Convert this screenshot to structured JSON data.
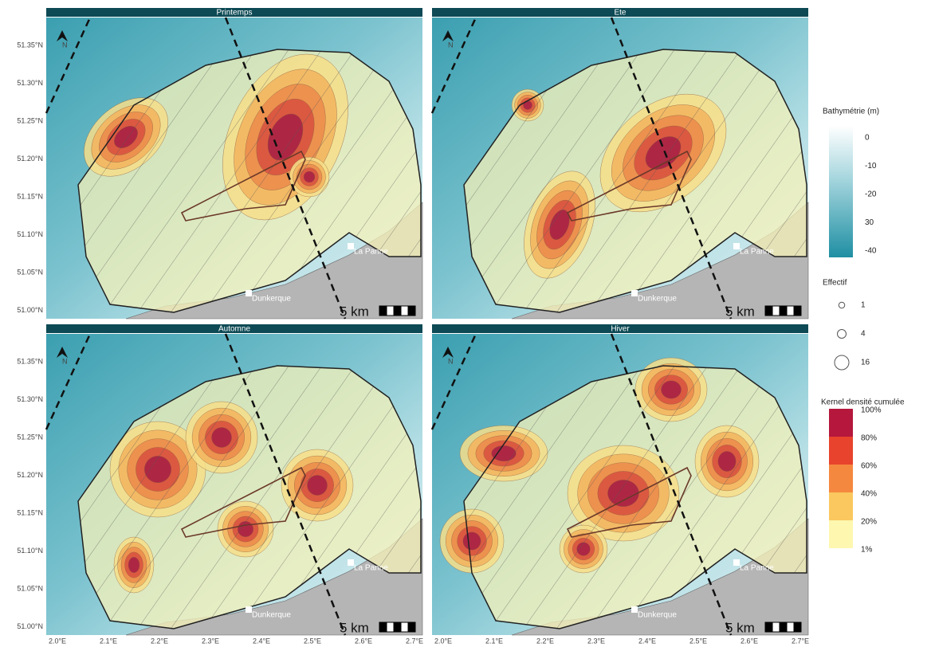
{
  "panels": [
    {
      "title": "Printemps",
      "places": [
        "La Panne",
        "Dunkerque"
      ],
      "scale": "5 km"
    },
    {
      "title": "Ete",
      "places": [
        "La Panne",
        "Dunkerque"
      ],
      "scale": "5 km"
    },
    {
      "title": "Automne",
      "places": [
        "La Panne",
        "Dunkerque"
      ],
      "scale": "5 km"
    },
    {
      "title": "Hiver",
      "places": [
        "La Panne",
        "Dunkerque"
      ],
      "scale": "5 km"
    }
  ],
  "north": "N",
  "lat_labels": [
    "51.35°N",
    "51.30°N",
    "51.25°N",
    "51.20°N",
    "51.15°N",
    "51.10°N",
    "51.05°N",
    "51.00°N"
  ],
  "lon_labels": [
    "2.0°E",
    "2.1°E",
    "2.2°E",
    "2.3°E",
    "2.4°E",
    "2.5°E",
    "2.6°E",
    "2.7°E"
  ],
  "legend": {
    "bathymetry": {
      "title": "Bathymétrie (m)",
      "ticks": [
        "0",
        "-10",
        "-20",
        "30",
        "-40"
      ]
    },
    "effectif": {
      "title": "Effectif",
      "values": [
        1,
        4,
        16
      ]
    },
    "kernel": {
      "title": "Kernel densité cumulée",
      "labels": [
        "100%",
        "80%",
        "60%",
        "40%",
        "20%",
        "1%"
      ]
    }
  }
}
